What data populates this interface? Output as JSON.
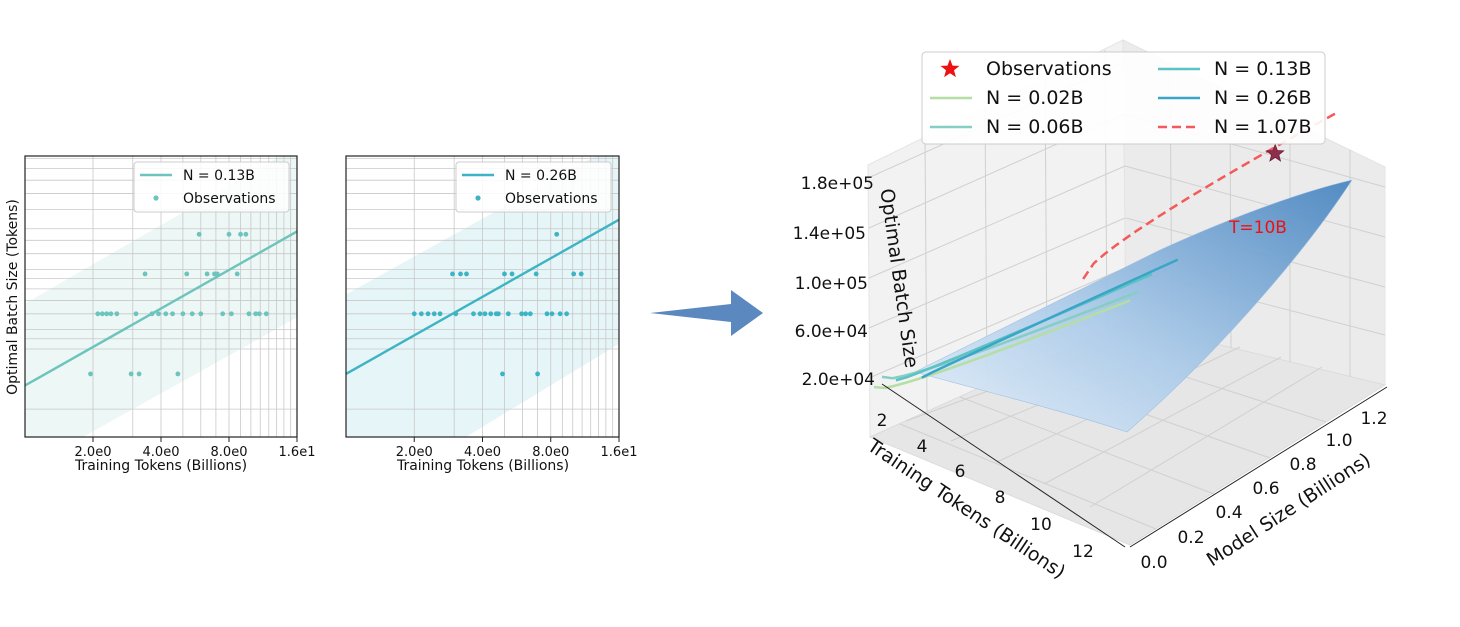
{
  "chart_data": [
    {
      "type": "scatter",
      "xlabel": "Training Tokens (Billions)",
      "ylabel": "Optimal Batch Size (Tokens)",
      "x_scale": "log",
      "x_ticks": [
        {
          "value": 2,
          "label": "2.0e0"
        },
        {
          "value": 4,
          "label": "4.0e0"
        },
        {
          "value": 8,
          "label": "8.0e0"
        },
        {
          "value": 16,
          "label": "1.6e1"
        }
      ],
      "xlim": [
        1,
        16
      ],
      "y_scale": "log",
      "ylim": [
        5800,
        148000
      ],
      "y_gridlines": [
        8000,
        16000,
        18000,
        20000,
        24000,
        28000,
        32000,
        36000,
        40000,
        48000,
        56000,
        64000,
        80000,
        96000,
        112000,
        128000,
        144000
      ],
      "series": [
        {
          "name": "N = 0.13B",
          "kind": "fit-line",
          "color": "#6cc4bc",
          "x": [
            1,
            16
          ],
          "y": [
            10500,
            62000
          ]
        },
        {
          "name": "Observations",
          "kind": "points",
          "color": "#6cc4bc",
          "x": [
            1.95,
            2.1,
            2.2,
            2.3,
            2.4,
            2.55,
            2.95,
            3.1,
            3.2,
            3.4,
            3.65,
            3.9,
            4.2,
            4.5,
            4.75,
            5.0,
            5.2,
            5.5,
            5.9,
            6.0,
            6.4,
            6.9,
            7.1,
            7.5,
            8.0,
            8.2,
            8.7,
            9.0,
            9.5,
            9.8,
            10.5,
            10.9,
            11.7
          ],
          "y": [
            12000,
            24000,
            24000,
            24000,
            24000,
            24000,
            12000,
            24000,
            12000,
            38000,
            24000,
            24000,
            24000,
            24000,
            12000,
            24000,
            38000,
            24000,
            60000,
            24000,
            38000,
            38000,
            38000,
            24000,
            60000,
            24000,
            38000,
            60000,
            60000,
            24000,
            24000,
            24000,
            24000
          ]
        },
        {
          "name": "fit band",
          "kind": "band",
          "color": "#6cc4bc",
          "x": [
            1,
            16
          ],
          "y_low": [
            4000,
            23000
          ],
          "y_high": [
            27000,
            165000
          ]
        }
      ],
      "legend": [
        "N = 0.13B",
        "Observations"
      ],
      "legend_position": "top-right",
      "grid": true
    },
    {
      "type": "scatter",
      "xlabel": "Training Tokens (Billions)",
      "ylabel": "",
      "x_scale": "log",
      "x_ticks": [
        {
          "value": 2,
          "label": "2.0e0"
        },
        {
          "value": 4,
          "label": "4.0e0"
        },
        {
          "value": 8,
          "label": "8.0e0"
        },
        {
          "value": 16,
          "label": "1.6e1"
        }
      ],
      "xlim": [
        1,
        16
      ],
      "y_scale": "log",
      "ylim": [
        5800,
        148000
      ],
      "series": [
        {
          "name": "N = 0.26B",
          "kind": "fit-line",
          "color": "#3db4c4",
          "x": [
            1,
            16
          ],
          "y": [
            12000,
            71000
          ]
        },
        {
          "name": "Observations",
          "kind": "points",
          "color": "#3db4c4",
          "x": [
            2.0,
            2.15,
            2.3,
            2.45,
            2.6,
            2.95,
            3.05,
            3.2,
            3.4,
            3.65,
            3.9,
            4.1,
            4.35,
            4.6,
            4.7,
            4.9,
            5.0,
            5.2,
            5.4,
            5.95,
            6.2,
            6.5,
            6.9,
            7.0,
            7.7,
            8.1,
            8.5,
            8.8,
            9.4,
            10.1,
            10.9
          ],
          "y": [
            24000,
            24000,
            24000,
            24000,
            24000,
            38000,
            24000,
            38000,
            38000,
            24000,
            24000,
            24000,
            24000,
            24000,
            24000,
            12000,
            38000,
            24000,
            38000,
            24000,
            24000,
            24000,
            38000,
            12000,
            24000,
            24000,
            60000,
            24000,
            24000,
            38000,
            38000
          ]
        },
        {
          "name": "fit band",
          "kind": "band",
          "color": "#3db4c4",
          "x": [
            1,
            16
          ],
          "y_low": [
            2500,
            17000
          ],
          "y_high": [
            30000,
            172000
          ]
        }
      ],
      "legend": [
        "N = 0.26B",
        "Observations"
      ],
      "legend_position": "top-right",
      "grid": true
    },
    {
      "type": "surface",
      "xlabel": "Training Tokens (Billions)",
      "ylabel": "Model Size (Billions)",
      "zlabel": "Optimal Batch Size",
      "x_ticks": [
        "2",
        "4",
        "6",
        "8",
        "10",
        "12"
      ],
      "y_ticks": [
        "0.0",
        "0.2",
        "0.4",
        "0.6",
        "0.8",
        "1.0",
        "1.2"
      ],
      "z_ticks": [
        "2.0e+04",
        "6.0e+04",
        "1.0e+05",
        "1.4e+05",
        "1.8e+05"
      ],
      "xlim": [
        1,
        13
      ],
      "ylim": [
        0,
        1.3
      ],
      "zlim": [
        10000,
        190000
      ],
      "surface_color": "#4a86c0",
      "series": [
        {
          "name": "N = 0.02B",
          "color": "#b4dea4",
          "dash": "solid",
          "model_size": 0.02,
          "x": [
            1,
            13
          ],
          "z": [
            44000,
            25000
          ]
        },
        {
          "name": "N = 0.06B",
          "color": "#84cec4",
          "dash": "solid",
          "model_size": 0.06,
          "x": [
            1,
            13
          ],
          "z": [
            52000,
            32000
          ]
        },
        {
          "name": "N = 0.13B",
          "color": "#5cc2c4",
          "dash": "solid",
          "model_size": 0.13,
          "x": [
            1,
            13
          ],
          "z": [
            52000,
            46000
          ]
        },
        {
          "name": "N = 0.26B",
          "color": "#3aa6c6",
          "dash": "solid",
          "model_size": 0.26,
          "x": [
            1,
            13
          ],
          "z": [
            58000,
            60000
          ]
        },
        {
          "name": "N = 1.07B",
          "color": "#f45a5a",
          "dash": "dashed",
          "model_size": 1.07,
          "x": [
            1,
            13
          ],
          "z": [
            150000,
            185000
          ]
        }
      ],
      "observation": {
        "name": "Observations",
        "color": "#ee1111",
        "x": 10,
        "y": 1.07,
        "z": 176000,
        "label": "T=10B"
      },
      "legend": [
        "Observations",
        "N = 0.02B",
        "N = 0.06B",
        "N = 0.13B",
        "N = 0.26B",
        "N = 1.07B"
      ],
      "legend_position": "top"
    }
  ],
  "arrow_color": "#5b89bf"
}
